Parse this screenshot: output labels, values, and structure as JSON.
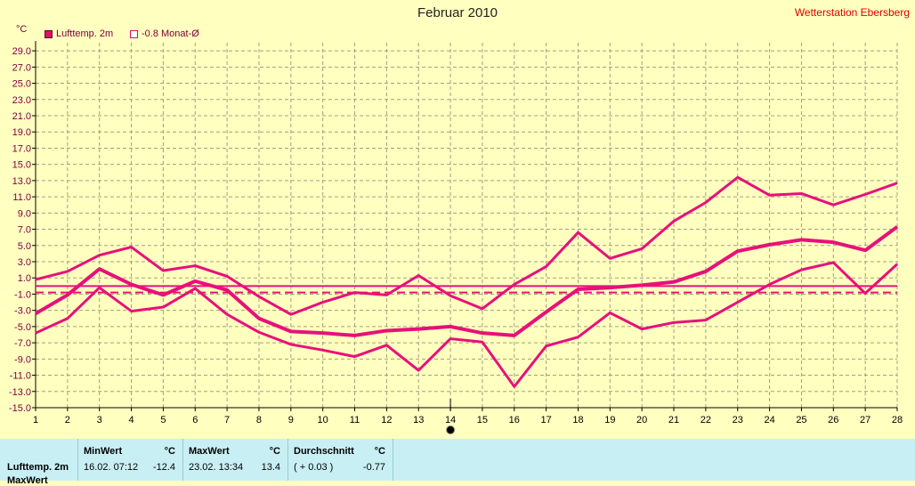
{
  "header": {
    "title": "Februar 2010",
    "station": "Wetterstation Ebersberg",
    "unit": "°C"
  },
  "legend": [
    {
      "label": "Lufttemp. 2m",
      "style": "filled"
    },
    {
      "label": "-0.8 Monat-Ø",
      "style": "empty"
    }
  ],
  "chart_data": {
    "type": "line",
    "x": [
      1,
      2,
      3,
      4,
      5,
      6,
      7,
      8,
      9,
      10,
      11,
      12,
      13,
      14,
      15,
      16,
      17,
      18,
      19,
      20,
      21,
      22,
      23,
      24,
      25,
      26,
      27,
      28
    ],
    "x_ticks": [
      "1",
      "2",
      "3",
      "4",
      "5",
      "6",
      "7",
      "8",
      "9",
      "10",
      "11",
      "12",
      "13",
      "14",
      "15",
      "16",
      "17",
      "18",
      "19",
      "20",
      "21",
      "22",
      "23",
      "24",
      "25",
      "26",
      "27",
      "28"
    ],
    "y_ticks": [
      "29.0",
      "27.0",
      "25.0",
      "23.0",
      "21.0",
      "19.0",
      "17.0",
      "15.0",
      "13.0",
      "11.0",
      "9.0",
      "7.0",
      "5.0",
      "3.0",
      "1.0",
      "-1.0",
      "-3.0",
      "-5.0",
      "-7.0",
      "-9.0",
      "-11.0",
      "-13.0",
      "-15.0"
    ],
    "ylim": [
      -15,
      30
    ],
    "grid": true,
    "series": [
      {
        "role": "max",
        "values": [
          0.8,
          1.8,
          3.8,
          4.8,
          1.9,
          2.5,
          1.2,
          -1.3,
          -3.5,
          -2.0,
          -0.8,
          -1.1,
          1.3,
          -1.2,
          -2.8,
          0.2,
          2.4,
          6.6,
          3.4,
          4.6,
          8.0,
          10.3,
          13.4,
          11.2,
          11.4,
          10.0,
          11.3,
          12.7
        ]
      },
      {
        "role": "mean",
        "values": [
          -3.4,
          -1.1,
          2.1,
          0.2,
          -1.1,
          0.6,
          -0.5,
          -4.0,
          -5.6,
          -5.8,
          -6.1,
          -5.5,
          -5.3,
          -5.0,
          -5.8,
          -6.1,
          -3.2,
          -0.4,
          -0.2,
          0.1,
          0.5,
          1.8,
          4.3,
          5.1,
          5.7,
          5.4,
          4.4,
          7.3
        ]
      },
      {
        "role": "min",
        "values": [
          -5.8,
          -4.0,
          -0.2,
          -3.1,
          -2.6,
          -0.3,
          -3.5,
          -5.7,
          -7.2,
          -7.9,
          -8.7,
          -7.3,
          -10.4,
          -6.5,
          -6.9,
          -12.4,
          -7.4,
          -6.3,
          -3.3,
          -5.3,
          -4.5,
          -4.2,
          -2.0,
          0.2,
          2.0,
          2.9,
          -0.9,
          2.7
        ]
      }
    ],
    "reference_lines": [
      {
        "value": 0,
        "style": "solid"
      },
      {
        "value": -0.8,
        "style": "dashed"
      }
    ],
    "marker_x": 14,
    "colors": {
      "line": "#e8107a",
      "grid": "#a0a080",
      "axis": "#000000",
      "bg": "#ffffc0"
    }
  },
  "stats": {
    "row_label": "Lufttemp. 2m",
    "row_label_2": "MaxWert",
    "min": {
      "header": "MinWert",
      "unit": "°C",
      "date": "16.02.  07:12",
      "value": "-12.4"
    },
    "max": {
      "header": "MaxWert",
      "unit": "°C",
      "date": "23.02.  13:34",
      "value": "13.4"
    },
    "avg": {
      "header": "Durchschnitt",
      "unit": "°C",
      "delta": "( + 0.03 )",
      "value": "-0.77"
    }
  }
}
